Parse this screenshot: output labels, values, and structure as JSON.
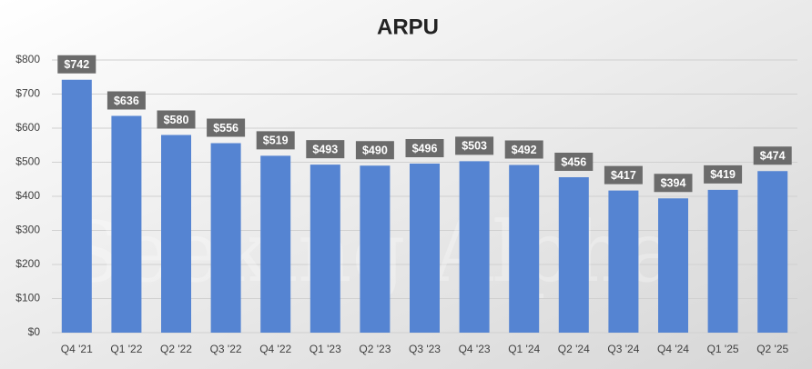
{
  "chart_data": {
    "type": "bar",
    "title": "ARPU",
    "watermark": "Seeking Alpha",
    "categories": [
      "Q4 '21",
      "Q1 '22",
      "Q2 '22",
      "Q3 '22",
      "Q4 '22",
      "Q1 '23",
      "Q2 '23",
      "Q3 '23",
      "Q4 '23",
      "Q1 '24",
      "Q2 '24",
      "Q3 '24",
      "Q4 '24",
      "Q1 '25",
      "Q2 '25"
    ],
    "values": [
      742,
      636,
      580,
      556,
      519,
      493,
      490,
      496,
      503,
      492,
      456,
      417,
      394,
      419,
      474
    ],
    "value_labels": [
      "$742",
      "$636",
      "$580",
      "$556",
      "$519",
      "$493",
      "$490",
      "$496",
      "$503",
      "$492",
      "$456",
      "$417",
      "$394",
      "$419",
      "$474"
    ],
    "color": "#5584d2",
    "ylim": [
      0,
      800
    ],
    "yticks": [
      {
        "value": 0,
        "label": "$0"
      },
      {
        "value": 100,
        "label": "$100"
      },
      {
        "value": 200,
        "label": "$200"
      },
      {
        "value": 300,
        "label": "$300"
      },
      {
        "value": 400,
        "label": "$400"
      },
      {
        "value": 500,
        "label": "$500"
      },
      {
        "value": 600,
        "label": "$600"
      },
      {
        "value": 700,
        "label": "$700"
      },
      {
        "value": 800,
        "label": "$800"
      }
    ],
    "grid": true
  }
}
